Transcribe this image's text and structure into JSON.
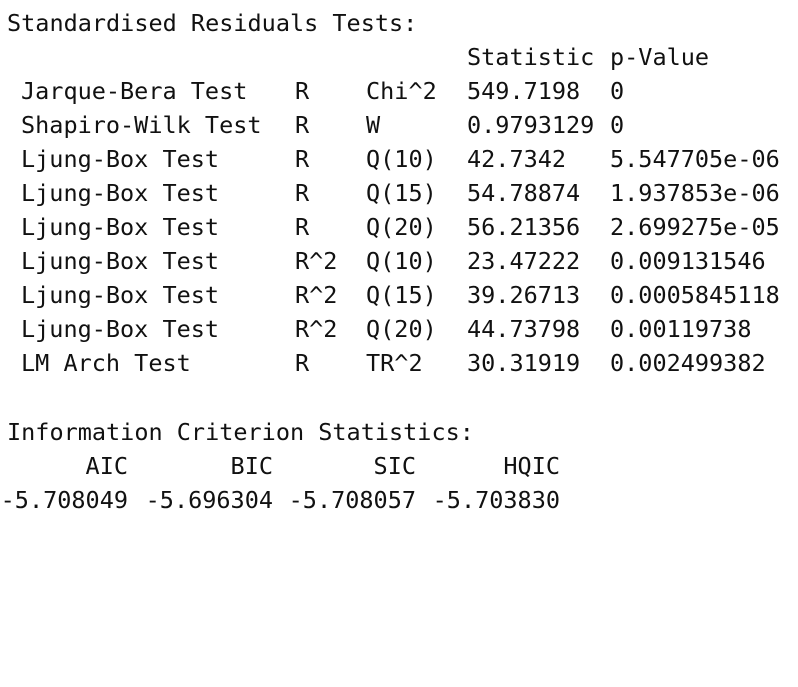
{
  "residuals": {
    "title": "Standardised Residuals Tests:",
    "headers": {
      "statistic": "Statistic",
      "pvalue": "p-Value"
    },
    "rows": [
      {
        "test": "Jarque-Bera Test",
        "var": "R",
        "stat": "Chi^2",
        "value": "549.7198",
        "p": "0"
      },
      {
        "test": "Shapiro-Wilk Test",
        "var": "R",
        "stat": "W",
        "value": "0.9793129",
        "p": "0"
      },
      {
        "test": "Ljung-Box Test",
        "var": "R",
        "stat": "Q(10)",
        "value": "42.7342",
        "p": "5.547705e-06"
      },
      {
        "test": "Ljung-Box Test",
        "var": "R",
        "stat": "Q(15)",
        "value": "54.78874",
        "p": "1.937853e-06"
      },
      {
        "test": "Ljung-Box Test",
        "var": "R",
        "stat": "Q(20)",
        "value": "56.21356",
        "p": "2.699275e-05"
      },
      {
        "test": "Ljung-Box Test",
        "var": "R^2",
        "stat": "Q(10)",
        "value": "23.47222",
        "p": "0.009131546"
      },
      {
        "test": "Ljung-Box Test",
        "var": "R^2",
        "stat": "Q(15)",
        "value": "39.26713",
        "p": "0.0005845118"
      },
      {
        "test": "Ljung-Box Test",
        "var": "R^2",
        "stat": "Q(20)",
        "value": "44.73798",
        "p": "0.00119738"
      },
      {
        "test": "LM Arch Test",
        "var": "R",
        "stat": "TR^2",
        "value": "30.31919",
        "p": "0.002499382"
      }
    ]
  },
  "info_criterion": {
    "title": "Information Criterion Statistics:",
    "headers": [
      "AIC",
      "BIC",
      "SIC",
      "HQIC"
    ],
    "values": [
      "-5.708049",
      "-5.696304",
      "-5.708057",
      "-5.703830"
    ]
  }
}
